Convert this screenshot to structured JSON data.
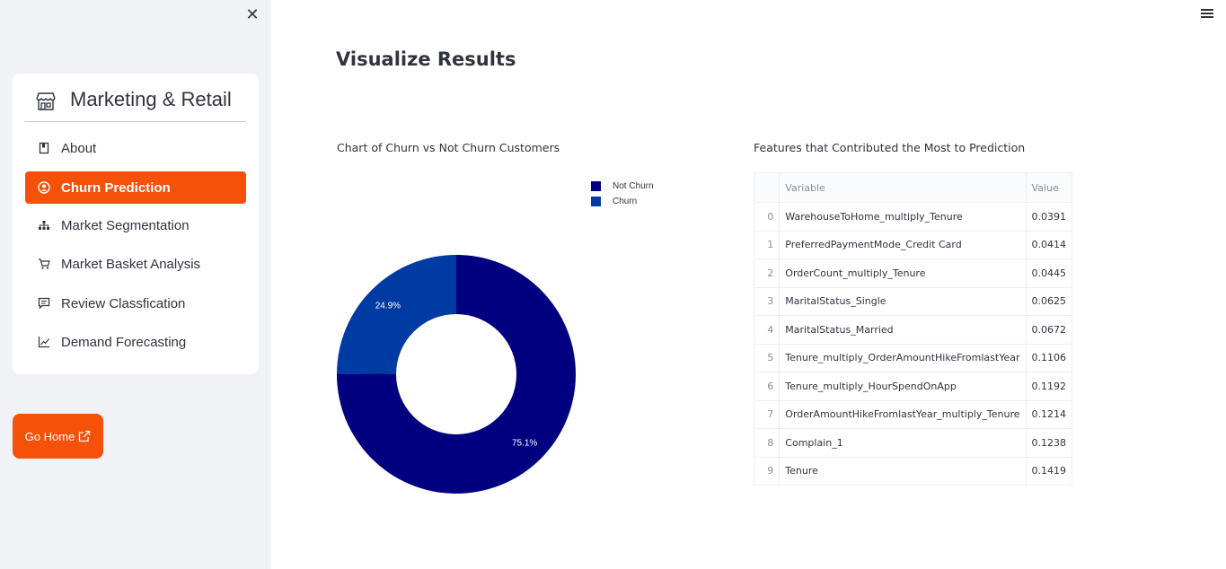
{
  "sidebar": {
    "header_title": "Marketing & Retail",
    "items": [
      {
        "label": "About",
        "icon": "book-icon",
        "active": false
      },
      {
        "label": "Churn Prediction",
        "icon": "user-circle-icon",
        "active": true
      },
      {
        "label": "Market Segmentation",
        "icon": "hierarchy-icon",
        "active": false
      },
      {
        "label": "Market Basket Analysis",
        "icon": "cart-icon",
        "active": false
      },
      {
        "label": "Review Classfication",
        "icon": "chat-icon",
        "active": false
      },
      {
        "label": "Demand Forecasting",
        "icon": "chart-line-icon",
        "active": false
      }
    ],
    "go_home_label": "Go Home",
    "accent_color": "#f55109"
  },
  "main": {
    "title": "Visualize Results",
    "chart_section_title": "Chart of Churn vs Not Churn Customers",
    "table_section_title": "Features that Contributed the Most to Prediction"
  },
  "chart_data": {
    "type": "pie",
    "donut": true,
    "categories": [
      "Not Churn",
      "Churn"
    ],
    "values": [
      75.1,
      24.9
    ],
    "labels": [
      "75.1%",
      "24.9%"
    ],
    "colors": [
      "#000080",
      "#003aa3"
    ],
    "legend_placement": "top-right"
  },
  "table": {
    "columns": [
      "",
      "Variable",
      "Value"
    ],
    "rows": [
      {
        "idx": "0",
        "variable": "WarehouseToHome_multiply_Tenure",
        "value": "0.0391"
      },
      {
        "idx": "1",
        "variable": "PreferredPaymentMode_Credit Card",
        "value": "0.0414"
      },
      {
        "idx": "2",
        "variable": "OrderCount_multiply_Tenure",
        "value": "0.0445"
      },
      {
        "idx": "3",
        "variable": "MaritalStatus_Single",
        "value": "0.0625"
      },
      {
        "idx": "4",
        "variable": "MaritalStatus_Married",
        "value": "0.0672"
      },
      {
        "idx": "5",
        "variable": "Tenure_multiply_OrderAmountHikeFromlastYear",
        "value": "0.1106"
      },
      {
        "idx": "6",
        "variable": "Tenure_multiply_HourSpendOnApp",
        "value": "0.1192"
      },
      {
        "idx": "7",
        "variable": "OrderAmountHikeFromlastYear_multiply_Tenure",
        "value": "0.1214"
      },
      {
        "idx": "8",
        "variable": "Complain_1",
        "value": "0.1238"
      },
      {
        "idx": "9",
        "variable": "Tenure",
        "value": "0.1419"
      }
    ]
  }
}
